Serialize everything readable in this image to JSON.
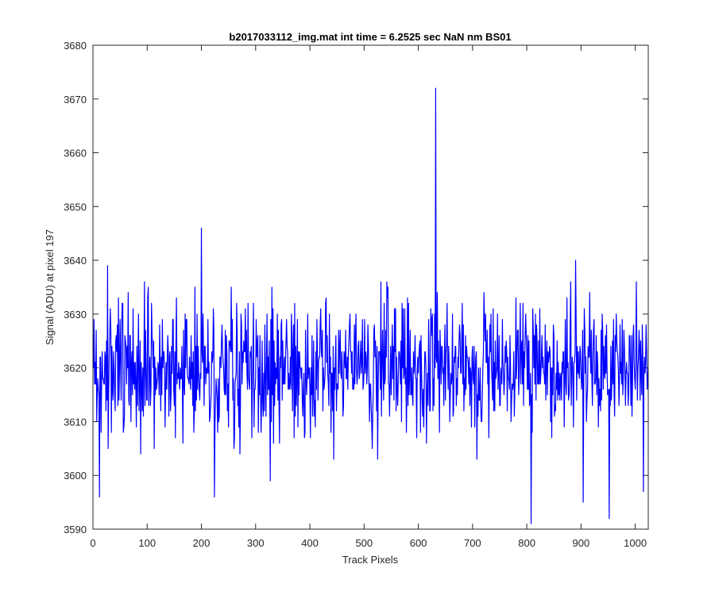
{
  "chart_data": {
    "type": "line",
    "title": "b2017033112_img.mat int time = 6.2525 sec  NaN nm BS01",
    "xlabel": "Track Pixels",
    "ylabel": "Signal (ADU) at pixel 197",
    "xlim": [
      0,
      1024
    ],
    "ylim": [
      3590,
      3680
    ],
    "xticks": [
      0,
      100,
      200,
      300,
      400,
      500,
      600,
      700,
      800,
      900,
      1000
    ],
    "yticks": [
      3590,
      3600,
      3610,
      3620,
      3630,
      3640,
      3650,
      3660,
      3670,
      3680
    ],
    "grid": false,
    "legend": "none",
    "line_color": "#0000ff",
    "series": [
      {
        "noise_mean": 3620,
        "noise_typical_range": [
          3603,
          3636
        ],
        "n_points": 1024,
        "x_start": 1,
        "notable_points": [
          {
            "x": 12,
            "y": 3596
          },
          {
            "x": 27,
            "y": 3639
          },
          {
            "x": 200,
            "y": 3646
          },
          {
            "x": 224,
            "y": 3596
          },
          {
            "x": 327,
            "y": 3599
          },
          {
            "x": 632,
            "y": 3672
          },
          {
            "x": 808,
            "y": 3591
          },
          {
            "x": 890,
            "y": 3640
          },
          {
            "x": 904,
            "y": 3595
          },
          {
            "x": 952,
            "y": 3592
          },
          {
            "x": 1015,
            "y": 3597
          }
        ]
      }
    ]
  }
}
